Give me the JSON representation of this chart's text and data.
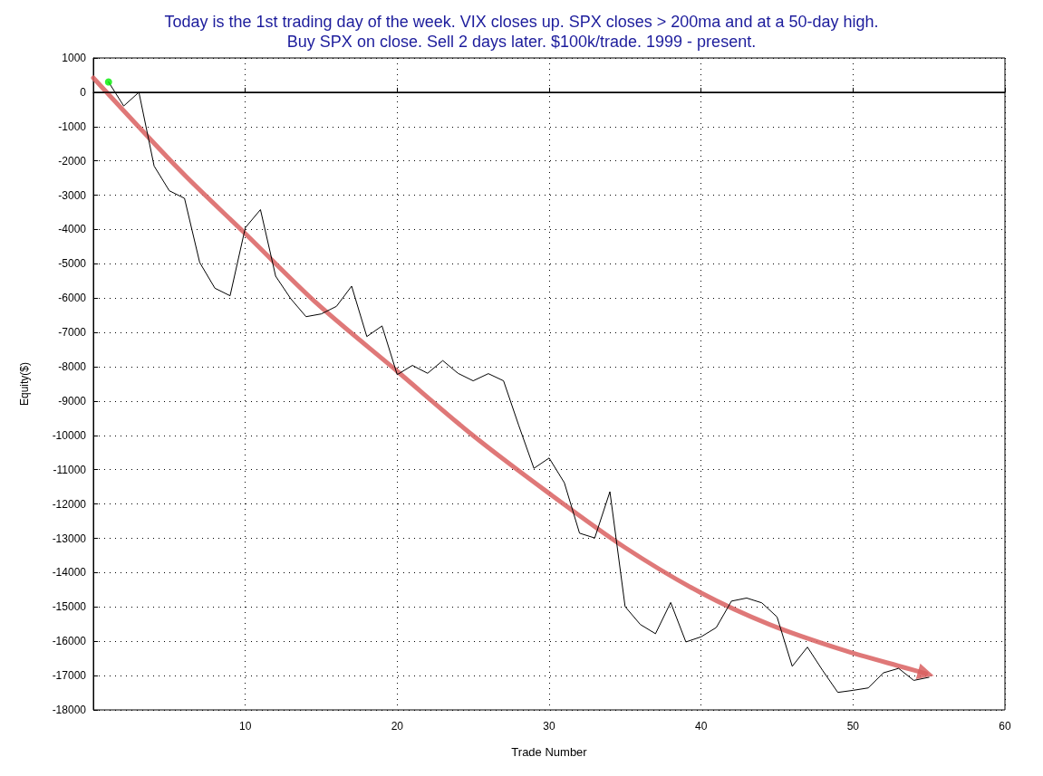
{
  "chart_data": {
    "type": "line",
    "title": "Today is the 1st trading day of the week. VIX closes up. SPX closes > 200ma and at a 50-day high.\nBuy SPX on close. Sell 2 days later. $100k/trade. 1999 - present.",
    "xlabel": "Trade Number",
    "ylabel": "Equity($)",
    "series": [
      {
        "color": "#000000",
        "marker": "none",
        "x": [
          1,
          2,
          3,
          4,
          5,
          6,
          7,
          8,
          9,
          10,
          11,
          12,
          13,
          14,
          15,
          16,
          17,
          18,
          19,
          20,
          21,
          22,
          23,
          24,
          25,
          26,
          27,
          28,
          29,
          30,
          31,
          32,
          33,
          34,
          35,
          36,
          37,
          38,
          39,
          40,
          41,
          42,
          43,
          44,
          45,
          46,
          47,
          48,
          49,
          50,
          51,
          52,
          53,
          54,
          55
        ],
        "values": [
          300,
          -400,
          0,
          -2150,
          -2870,
          -3090,
          -4960,
          -5710,
          -5930,
          -3950,
          -3420,
          -5360,
          -6020,
          -6540,
          -6460,
          -6240,
          -5650,
          -7120,
          -6810,
          -8230,
          -7960,
          -8190,
          -7820,
          -8190,
          -8410,
          -8200,
          -8410,
          -9710,
          -10960,
          -10660,
          -11380,
          -12850,
          -12990,
          -11640,
          -14990,
          -15510,
          -15780,
          -14870,
          -16020,
          -15870,
          -15600,
          -14830,
          -14740,
          -14880,
          -15290,
          -16730,
          -16170,
          -16850,
          -17490,
          -17430,
          -17360,
          -16920,
          -16790,
          -17140,
          -17050
        ]
      },
      {
        "type": "scatter",
        "color": "#00ee00",
        "marker": "circle",
        "x": [
          1
        ],
        "values": [
          300
        ]
      },
      {
        "type": "line",
        "color": "#d96060",
        "marker": "none",
        "x": [
          0,
          5.8,
          10,
          14.7,
          20,
          24.9,
          30,
          35,
          40,
          44.5,
          49.3,
          53.5,
          54.8
        ],
        "values": [
          420,
          -2320,
          -4120,
          -6150,
          -8130,
          -9970,
          -11690,
          -13270,
          -14590,
          -15510,
          -16250,
          -16780,
          -16940
        ]
      }
    ],
    "xlim": [
      0,
      60
    ],
    "xticks": [
      10,
      20,
      30,
      40,
      50,
      60
    ],
    "ylim": [
      -18000,
      1000
    ],
    "yticks": [
      -18000,
      -17000,
      -16000,
      -15000,
      -14000,
      -13000,
      -12000,
      -11000,
      -10000,
      -9000,
      -8000,
      -7000,
      -6000,
      -5000,
      -4000,
      -3000,
      -2000,
      -1000,
      0,
      1000
    ],
    "ref_lines": [
      {
        "axis": "y",
        "value": 0,
        "color": "#000000"
      }
    ],
    "grid": true,
    "legend": false
  }
}
